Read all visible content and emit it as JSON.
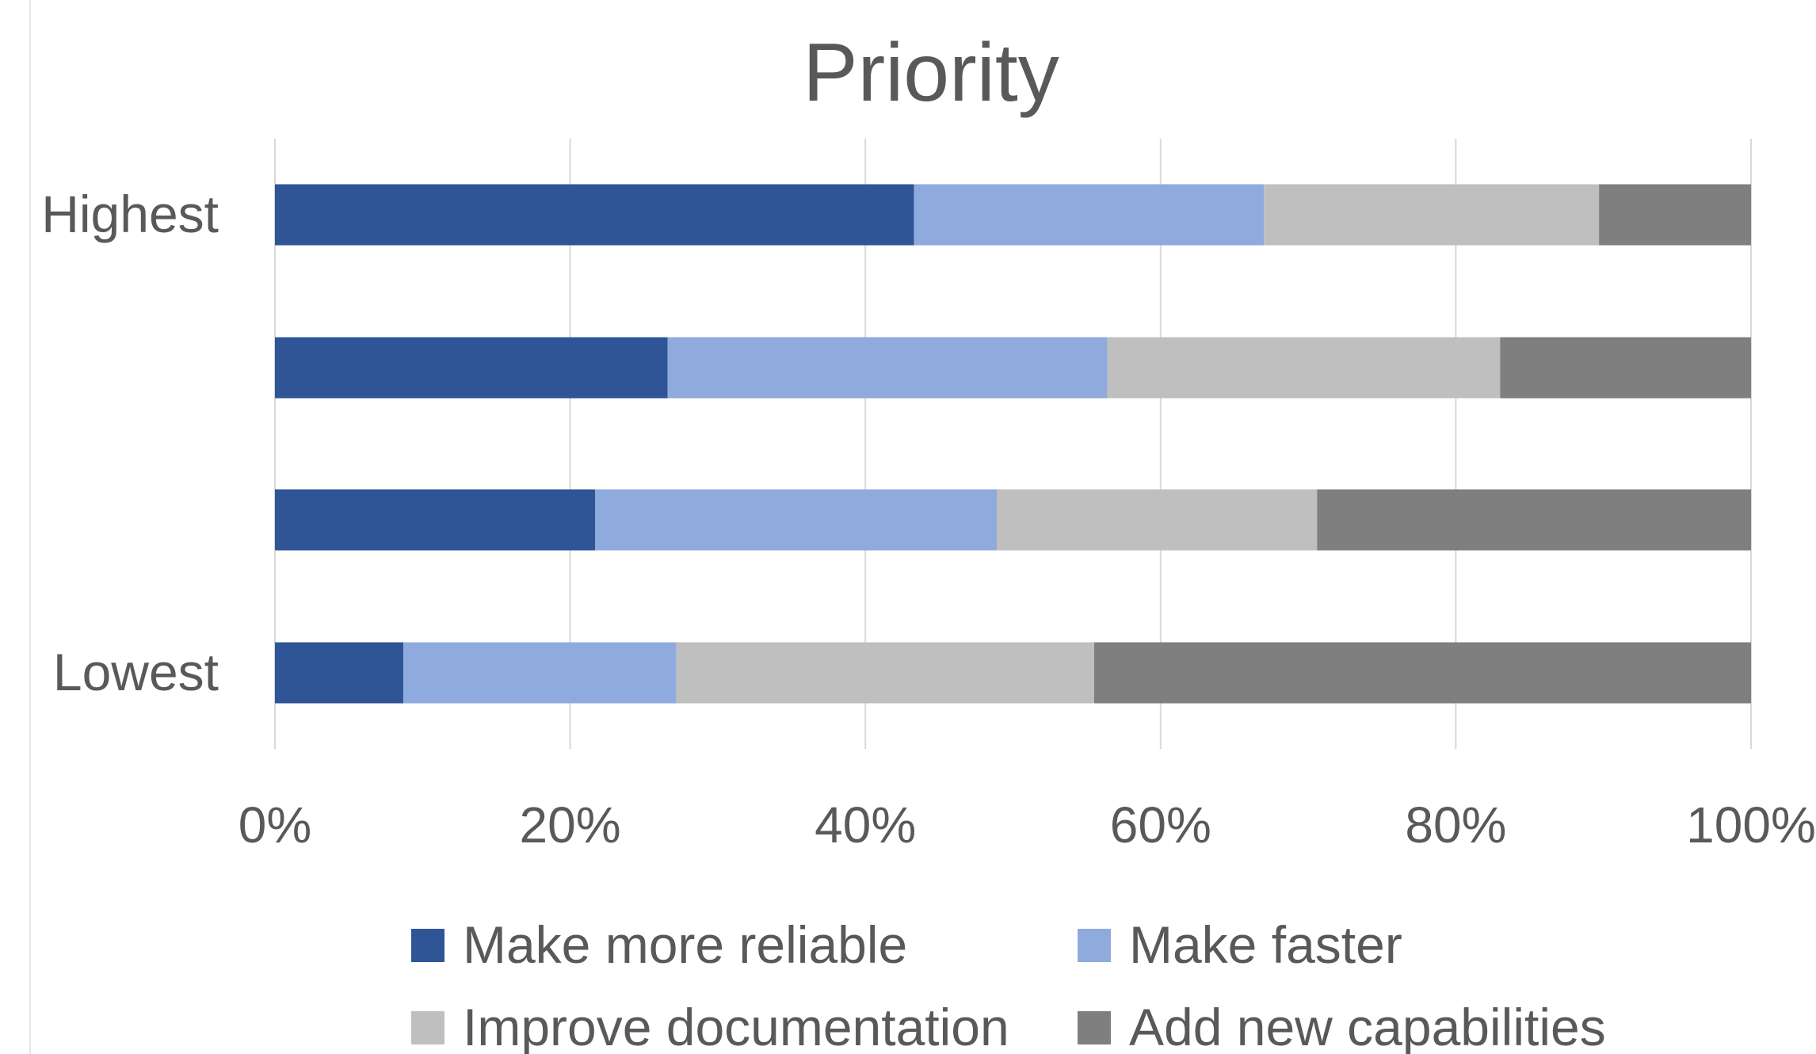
{
  "chart_data": {
    "type": "bar",
    "orientation": "horizontal",
    "stacking": "percent",
    "title": "Priority",
    "categories": [
      "Highest",
      "",
      "",
      "Lowest"
    ],
    "series": [
      {
        "name": "Make more reliable",
        "color": "#2F5597",
        "values": [
          43.3,
          26.6,
          21.7,
          8.7
        ]
      },
      {
        "name": "Make faster",
        "color": "#8FAADC",
        "values": [
          23.7,
          29.8,
          27.2,
          18.5
        ]
      },
      {
        "name": "Improve documentation",
        "color": "#BFBFBF",
        "values": [
          22.7,
          26.6,
          21.7,
          28.3
        ]
      },
      {
        "name": "Add new capabilities",
        "color": "#7F7F7F",
        "values": [
          10.3,
          17.0,
          29.4,
          44.5
        ]
      }
    ],
    "xlim": [
      0,
      100
    ],
    "x_ticks": [
      "0%",
      "20%",
      "40%",
      "60%",
      "80%",
      "100%"
    ],
    "grid": "vertical",
    "legend_position": "bottom",
    "xlabel": "",
    "ylabel": ""
  }
}
